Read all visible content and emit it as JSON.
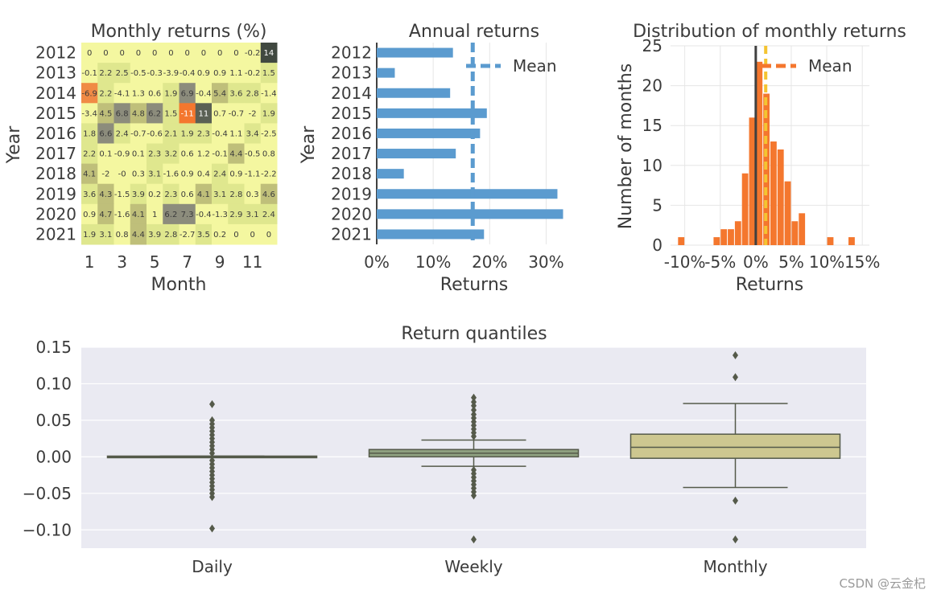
{
  "watermark": "CSDN @云金杞",
  "chart_data": [
    {
      "type": "heatmap",
      "title": "Monthly returns (%)",
      "xlabel": "Month",
      "ylabel": "Year",
      "x_tick_labels": [
        "1",
        "3",
        "5",
        "7",
        "9",
        "11"
      ],
      "months": [
        1,
        2,
        3,
        4,
        5,
        6,
        7,
        8,
        9,
        10,
        11,
        12
      ],
      "years": [
        "2012",
        "2013",
        "2014",
        "2015",
        "2016",
        "2017",
        "2018",
        "2019",
        "2020",
        "2021"
      ],
      "cell_labels": [
        [
          "0",
          "0",
          "0",
          "0",
          "0",
          "0",
          "0",
          "0",
          "0",
          "0",
          "-0.2",
          "14"
        ],
        [
          "-0.1",
          "2.2",
          "2.5",
          "-0.5",
          "-0.3",
          "-3.9",
          "-0.4",
          "0.9",
          "0.9",
          "1.1",
          "-0.2",
          "1.5"
        ],
        [
          "-6.9",
          "2.2",
          "-4.1",
          "1.3",
          "0.6",
          "1.9",
          "6.9",
          "-0.4",
          "5.4",
          "3.6",
          "2.8",
          "-1.4"
        ],
        [
          "-3.4",
          "4.5",
          "6.8",
          "4.8",
          "6.2",
          "1.5",
          "-11",
          "11",
          "0.7",
          "-0.7",
          "-2",
          "1.9"
        ],
        [
          "1.8",
          "6.6",
          "2.4",
          "-0.7",
          "-0.6",
          "2.1",
          "1.9",
          "2.3",
          "-0.4",
          "1.1",
          "3.4",
          "-2.5"
        ],
        [
          "2.2",
          "0.1",
          "-0.9",
          "0.1",
          "2.3",
          "3.2",
          "0.6",
          "1.2",
          "-0.1",
          "4.4",
          "-0.5",
          "0.8"
        ],
        [
          "4.1",
          "-2",
          "-0",
          "0.3",
          "3.1",
          "-1.6",
          "0.9",
          "0.4",
          "2.4",
          "0.9",
          "-1.1",
          "-2.2"
        ],
        [
          "3.6",
          "4.3",
          "-1.5",
          "3.9",
          "0.2",
          "2.3",
          "0.6",
          "4.1",
          "3.1",
          "2.8",
          "0.3",
          "4.6"
        ],
        [
          "0.9",
          "4.7",
          "-1.6",
          "4.1",
          "1",
          "6.2",
          "7.3",
          "-0.4",
          "-1.3",
          "2.9",
          "3.1",
          "2.4"
        ],
        [
          "1.9",
          "3.1",
          "0.8",
          "4.4",
          "3.9",
          "2.8",
          "-2.7",
          "3.5",
          "0.2",
          "0",
          "0",
          "0"
        ]
      ],
      "colors": {
        "neutral": "#f4f7a0",
        "mid": "#dfe78e",
        "dark": "#8c8c7c",
        "darkest": "#404840",
        "positive_dim": "#bfbf7a",
        "negative": "#f4772e"
      }
    },
    {
      "type": "bar",
      "orientation": "horizontal",
      "title": "Annual returns",
      "xlabel": "Returns",
      "ylabel": "Year",
      "categories": [
        "2012",
        "2013",
        "2014",
        "2015",
        "2016",
        "2017",
        "2018",
        "2019",
        "2020",
        "2021"
      ],
      "values": [
        0.135,
        0.032,
        0.13,
        0.195,
        0.183,
        0.14,
        0.048,
        0.32,
        0.33,
        0.19
      ],
      "mean": 0.17,
      "xlim": [
        0,
        0.345
      ],
      "x_ticks": [
        0,
        0.1,
        0.2,
        0.3
      ],
      "x_tick_labels": [
        "0%",
        "10%",
        "20%",
        "30%"
      ],
      "legend": [
        "Mean"
      ],
      "legend_position": "top-right",
      "color": "#5b9bcf"
    },
    {
      "type": "bar",
      "subtype": "histogram",
      "title": "Distribution of monthly returns",
      "xlabel": "Returns",
      "ylabel": "Number of months",
      "bins": [
        {
          "x0": -0.11,
          "x1": -0.1,
          "count": 1
        },
        {
          "x0": -0.06,
          "x1": -0.05,
          "count": 1
        },
        {
          "x0": -0.05,
          "x1": -0.04,
          "count": 2
        },
        {
          "x0": -0.04,
          "x1": -0.03,
          "count": 2
        },
        {
          "x0": -0.03,
          "x1": -0.02,
          "count": 3
        },
        {
          "x0": -0.02,
          "x1": -0.01,
          "count": 9
        },
        {
          "x0": -0.01,
          "x1": 0.0,
          "count": 16
        },
        {
          "x0": 0.0,
          "x1": 0.01,
          "count": 23
        },
        {
          "x0": 0.01,
          "x1": 0.02,
          "count": 19
        },
        {
          "x0": 0.02,
          "x1": 0.03,
          "count": 13
        },
        {
          "x0": 0.03,
          "x1": 0.04,
          "count": 12
        },
        {
          "x0": 0.04,
          "x1": 0.05,
          "count": 8
        },
        {
          "x0": 0.05,
          "x1": 0.06,
          "count": 3
        },
        {
          "x0": 0.06,
          "x1": 0.07,
          "count": 4
        },
        {
          "x0": 0.1,
          "x1": 0.11,
          "count": 1
        },
        {
          "x0": 0.13,
          "x1": 0.14,
          "count": 1
        }
      ],
      "mean": 0.014,
      "zero_line": 0,
      "xlim": [
        -0.12,
        0.16
      ],
      "ylim": [
        0,
        25
      ],
      "x_ticks": [
        -0.1,
        -0.05,
        0,
        0.05,
        0.1,
        0.15
      ],
      "x_tick_labels": [
        "-10%",
        "-5%",
        "0%",
        "5%",
        "10%",
        "15%"
      ],
      "y_ticks": [
        0,
        5,
        10,
        15,
        20,
        25
      ],
      "legend": [
        "Mean"
      ],
      "legend_position": "top-right",
      "color": "#f4772e"
    },
    {
      "type": "box",
      "title": "Return quantiles",
      "categories": [
        "Daily",
        "Weekly",
        "Monthly"
      ],
      "boxes": [
        {
          "q1": -0.001,
          "median": 0.0,
          "q3": 0.001,
          "whisker_low": -0.001,
          "whisker_high": 0.001,
          "outliers": [
            -0.098,
            -0.055,
            -0.05,
            -0.045,
            -0.04,
            -0.035,
            -0.03,
            -0.025,
            -0.02,
            -0.015,
            -0.01,
            -0.005,
            0.005,
            0.01,
            0.015,
            0.02,
            0.025,
            0.03,
            0.035,
            0.04,
            0.045,
            0.05,
            0.072
          ],
          "color": "#b7d0a0"
        },
        {
          "q1": 0.0,
          "median": 0.005,
          "q3": 0.01,
          "whisker_low": -0.013,
          "whisker_high": 0.023,
          "outliers": [
            -0.113,
            -0.053,
            -0.048,
            -0.043,
            -0.038,
            -0.033,
            -0.028,
            -0.023,
            -0.018,
            0.028,
            0.033,
            0.038,
            0.043,
            0.048,
            0.053,
            0.058,
            0.064,
            0.07,
            0.075,
            0.081
          ],
          "color": "#8ea080"
        },
        {
          "q1": -0.002,
          "median": 0.013,
          "q3": 0.031,
          "whisker_low": -0.042,
          "whisker_high": 0.073,
          "outliers": [
            -0.113,
            -0.06,
            0.109,
            0.139
          ],
          "color": "#cdc790"
        }
      ],
      "ylim": [
        -0.125,
        0.15
      ],
      "y_ticks": [
        -0.1,
        -0.05,
        0.0,
        0.05,
        0.1,
        0.15
      ],
      "y_tick_labels": [
        "−0.10",
        "−0.05",
        "0.00",
        "0.05",
        "0.10",
        "0.15"
      ],
      "grid": true
    }
  ]
}
